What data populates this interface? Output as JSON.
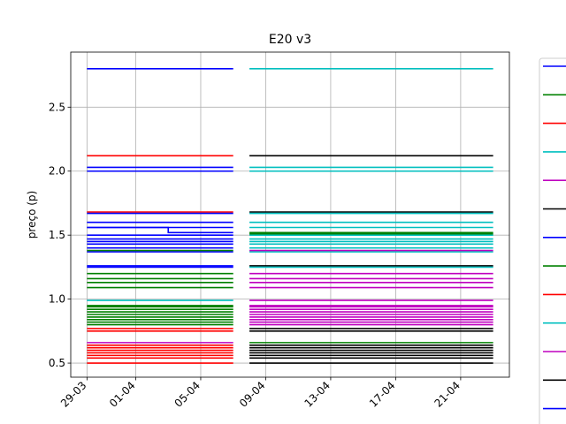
{
  "chart_data": {
    "type": "line",
    "title": "E20 v3",
    "xlabel": "",
    "ylabel": "preço (p)",
    "x_ticks": [
      "29-03",
      "01-04",
      "05-04",
      "09-04",
      "13-04",
      "17-04",
      "21-04"
    ],
    "y_ticks": [
      "0.5",
      "1.0",
      "1.5",
      "2.0",
      "2.5"
    ],
    "xlim": [
      "2023-03-28",
      "2023-04-24"
    ],
    "ylim": [
      0.39,
      2.93
    ],
    "grid": true,
    "legend": "right",
    "legend_colors": [
      "#0000ff",
      "#008000",
      "#ff0000",
      "#00bfbf",
      "#bf00bf",
      "#000000",
      "#0000ff",
      "#008000",
      "#ff0000",
      "#00bfbf",
      "#bf00bf",
      "#000000",
      "#0000ff"
    ],
    "segments": [
      {
        "x_start": "2023-03-29",
        "x_end": "2023-04-07",
        "lines": [
          {
            "color": "#0000ff",
            "y": [
              2.8
            ]
          },
          {
            "color": "#ff0000",
            "y": [
              2.12
            ]
          },
          {
            "color": "#0000ff",
            "y": [
              2.03,
              2.0
            ]
          },
          {
            "color": "#ff0000",
            "y": [
              1.68
            ]
          },
          {
            "color": "#0000ff",
            "y": [
              1.67,
              1.6,
              1.56,
              1.5,
              1.47,
              1.45,
              1.43,
              1.4,
              1.37
            ]
          },
          {
            "color": "#008000",
            "y": [
              1.38
            ]
          },
          {
            "color": "#0000ff",
            "y": [
              1.26,
              1.25
            ]
          },
          {
            "color": "#008000",
            "y": [
              1.2,
              1.16,
              1.13,
              1.09
            ]
          },
          {
            "color": "#00bfbf",
            "y": [
              0.99
            ]
          },
          {
            "color": "#008000",
            "y": [
              0.95,
              0.94,
              0.92,
              0.9,
              0.88,
              0.86,
              0.84,
              0.82,
              0.8
            ]
          },
          {
            "color": "#ff0000",
            "y": [
              0.77,
              0.75
            ]
          },
          {
            "color": "#bf00bf",
            "y": [
              0.66
            ]
          },
          {
            "color": "#ff0000",
            "y": [
              0.64,
              0.62,
              0.6,
              0.58,
              0.56,
              0.54,
              0.5
            ]
          }
        ],
        "step": {
          "color": "#0000ff",
          "y_before": 1.56,
          "y_after": 1.52,
          "x": "2023-04-03"
        }
      },
      {
        "x_start": "2023-04-08",
        "x_end": "2023-04-23",
        "lines": [
          {
            "color": "#00bfbf",
            "y": [
              2.8
            ]
          },
          {
            "color": "#000000",
            "y": [
              2.12
            ]
          },
          {
            "color": "#00bfbf",
            "y": [
              2.03,
              2.0
            ]
          },
          {
            "color": "#000000",
            "y": [
              1.68
            ]
          },
          {
            "color": "#00bfbf",
            "y": [
              1.67,
              1.6,
              1.56,
              1.5,
              1.47,
              1.45,
              1.43,
              1.4,
              1.37
            ]
          },
          {
            "color": "#008000",
            "y": [
              1.52,
              1.51
            ]
          },
          {
            "color": "#bf00bf",
            "y": [
              1.38
            ]
          },
          {
            "color": "#000000",
            "y": [
              1.26
            ]
          },
          {
            "color": "#00bfbf",
            "y": [
              1.25
            ]
          },
          {
            "color": "#bf00bf",
            "y": [
              1.2,
              1.16,
              1.13,
              1.09,
              0.99,
              0.95,
              0.94,
              0.92,
              0.9,
              0.88,
              0.86,
              0.84,
              0.82,
              0.8
            ]
          },
          {
            "color": "#000000",
            "y": [
              0.77,
              0.75
            ]
          },
          {
            "color": "#008000",
            "y": [
              0.66
            ]
          },
          {
            "color": "#000000",
            "y": [
              0.64,
              0.62,
              0.6,
              0.58,
              0.56,
              0.54,
              0.5
            ]
          }
        ]
      }
    ]
  }
}
